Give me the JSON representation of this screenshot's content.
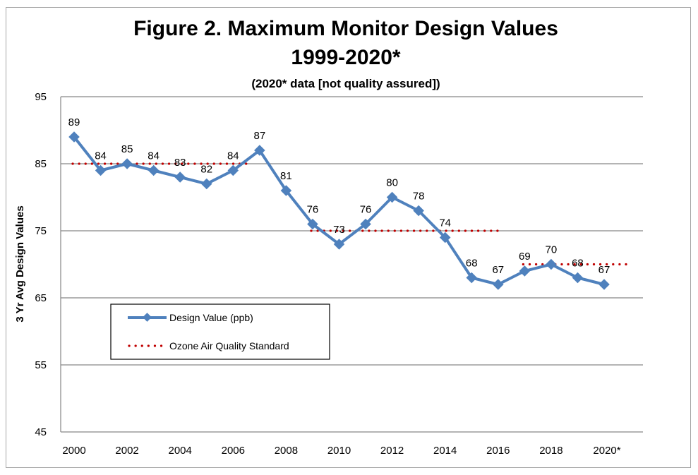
{
  "chart_data": {
    "type": "line",
    "title": "Figure 2. Maximum Monitor Design Values",
    "title_line2": "1999-2020*",
    "subtitle": "(2020* data [not quality assured])",
    "xlabel": "",
    "ylabel": "3 Yr Avg Design Values",
    "ylim": [
      45,
      95
    ],
    "yticks": [
      45,
      55,
      65,
      75,
      85,
      95
    ],
    "x": [
      2000,
      2001,
      2002,
      2003,
      2004,
      2005,
      2006,
      2007,
      2008,
      2009,
      2010,
      2011,
      2012,
      2013,
      2014,
      2015,
      2016,
      2017,
      2018,
      2019,
      2020
    ],
    "xtick_labels": [
      "2000",
      "2002",
      "2004",
      "2006",
      "2008",
      "2010",
      "2012",
      "2014",
      "2016",
      "2018",
      "2020*"
    ],
    "xtick_values": [
      2000,
      2002,
      2004,
      2006,
      2008,
      2010,
      2012,
      2014,
      2016,
      2018,
      2020
    ],
    "grid": true,
    "legend_position": "lower-left",
    "series": [
      {
        "name": "Design Value (ppb)",
        "color": "#4f81bd",
        "style": "solid-diamond",
        "values": [
          89,
          84,
          85,
          84,
          83,
          82,
          84,
          87,
          81,
          76,
          73,
          76,
          80,
          78,
          74,
          68,
          67,
          69,
          70,
          68,
          67
        ],
        "labels": [
          "89",
          "84",
          "85",
          "84",
          "83",
          "82",
          "84",
          "87",
          "81",
          "76",
          "73",
          "76",
          "80",
          "78",
          "74",
          "68",
          "67",
          "69",
          "70",
          "68",
          "67"
        ]
      },
      {
        "name": "Ozone Air Quality Standard",
        "color": "#c00000",
        "style": "dotted",
        "segments": [
          {
            "x_start": 2000,
            "x_end": 2006.7,
            "value": 85
          },
          {
            "x_start": 2009,
            "x_end": 2016,
            "value": 75
          },
          {
            "x_start": 2017,
            "x_end": 2020.9,
            "value": 70
          }
        ]
      }
    ]
  }
}
